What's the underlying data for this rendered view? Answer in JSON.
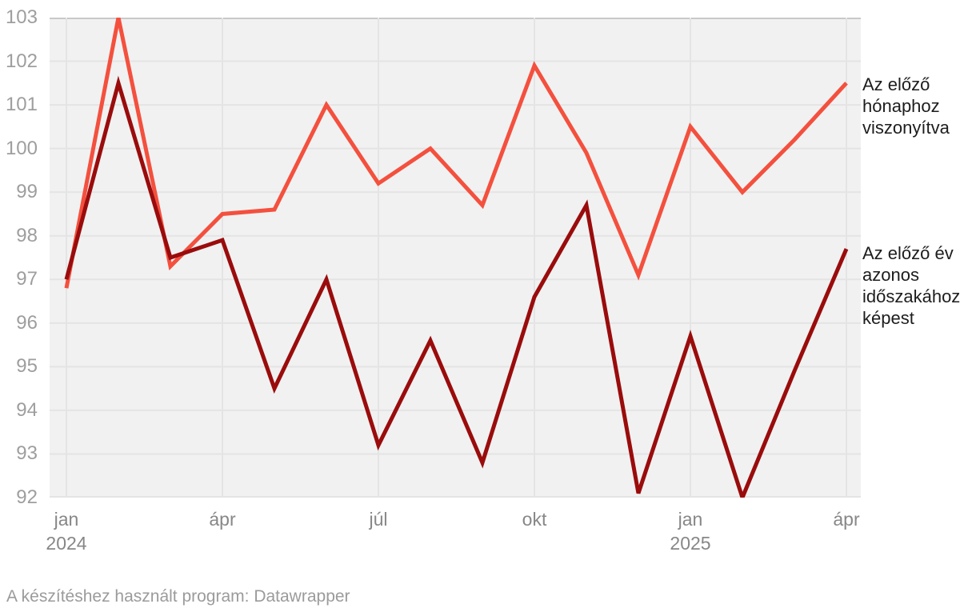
{
  "chart_data": {
    "type": "line",
    "x": [
      "2024-01",
      "2024-02",
      "2024-03",
      "2024-04",
      "2024-05",
      "2024-06",
      "2024-07",
      "2024-08",
      "2024-09",
      "2024-10",
      "2024-11",
      "2024-12",
      "2025-01",
      "2025-02",
      "2025-03",
      "2025-04"
    ],
    "x_ticks": [
      {
        "index": 0,
        "label": "jan",
        "year": "2024"
      },
      {
        "index": 3,
        "label": "ápr"
      },
      {
        "index": 6,
        "label": "júl"
      },
      {
        "index": 9,
        "label": "okt"
      },
      {
        "index": 12,
        "label": "jan",
        "year": "2025"
      },
      {
        "index": 15,
        "label": "ápr"
      }
    ],
    "y_ticks": [
      92,
      93,
      94,
      95,
      96,
      97,
      98,
      99,
      100,
      101,
      102,
      103
    ],
    "ylim": [
      92,
      103
    ],
    "grid": true,
    "legend_position": "right-direct-labels",
    "series": [
      {
        "name": "Az előző hónaphoz viszonyítva",
        "color": "#f4503e",
        "values": [
          96.8,
          103.0,
          97.3,
          98.5,
          98.6,
          101.0,
          99.2,
          100.0,
          98.7,
          101.9,
          99.9,
          97.1,
          100.5,
          99.0,
          100.2,
          101.5
        ]
      },
      {
        "name": "Az előző év azonos időszakához képest",
        "color": "#9a0c0c",
        "values": [
          97.0,
          101.5,
          97.5,
          97.9,
          94.5,
          97.0,
          93.2,
          95.6,
          92.8,
          96.6,
          98.7,
          92.1,
          95.7,
          92.0,
          94.9,
          97.7
        ]
      }
    ],
    "colors": {
      "plot_bg": "#f1f1f1",
      "grid": "#e4e4e4",
      "top_grid": "#c9c9c9",
      "x_label": "#878787",
      "y_label": "#9e9e9e"
    }
  },
  "footer": {
    "text": "A készítéshez használt program: Datawrapper"
  }
}
